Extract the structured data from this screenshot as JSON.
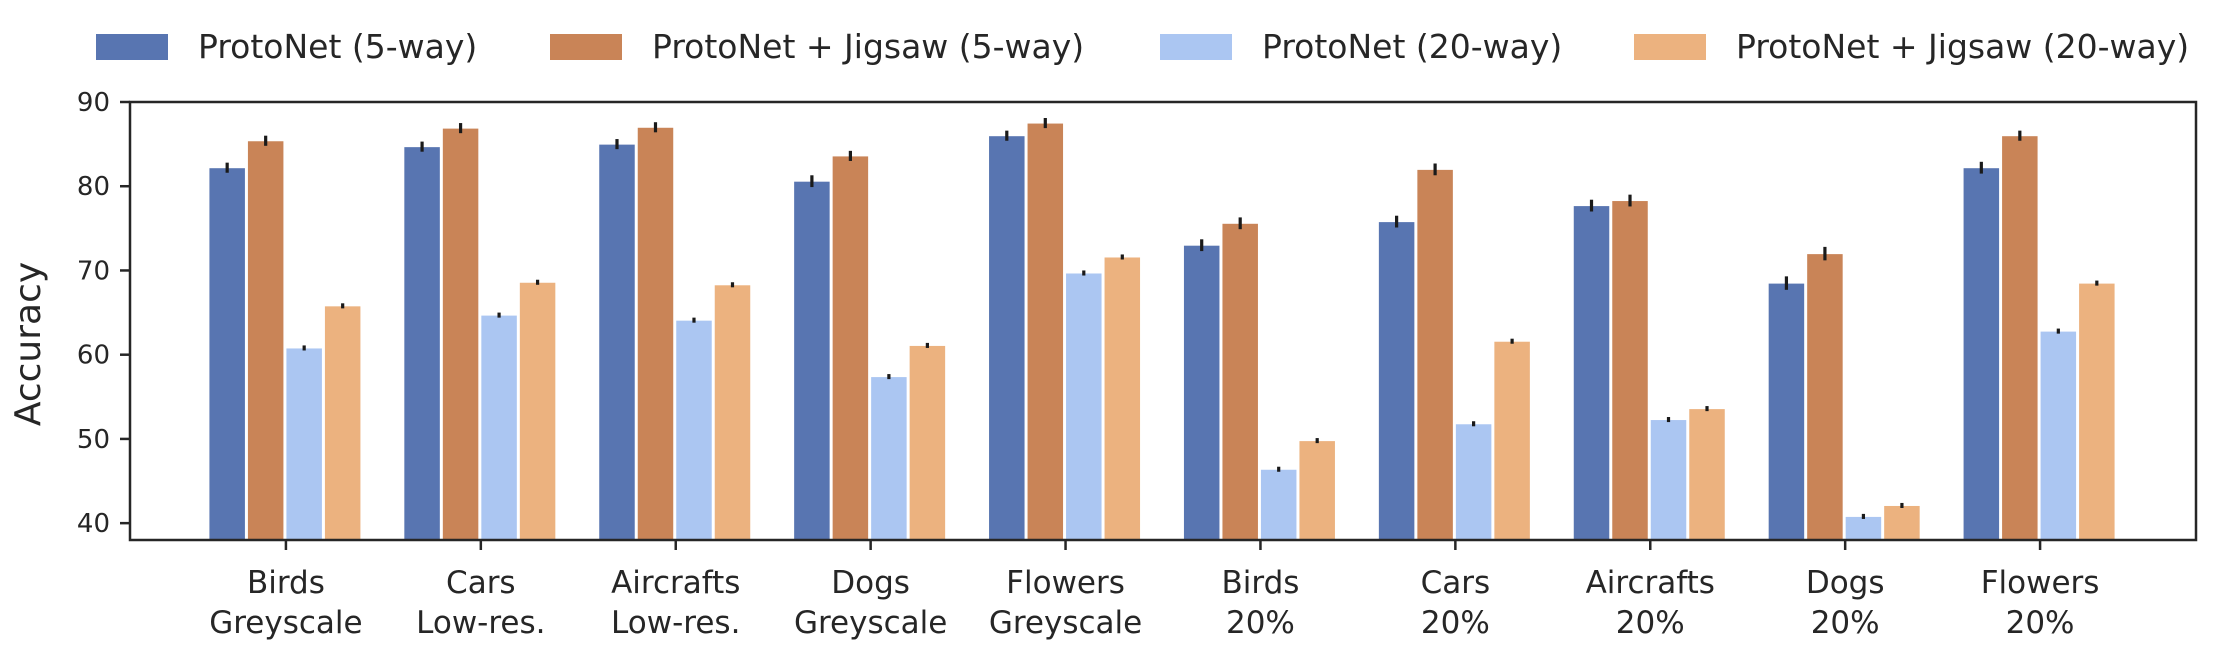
{
  "chart_data": {
    "type": "bar",
    "ylabel": "Accuracy",
    "xlabel": "",
    "ylim": [
      38,
      90
    ],
    "yticks": [
      40,
      50,
      60,
      70,
      80,
      90
    ],
    "grid": false,
    "legend_placement": "top",
    "categories": [
      [
        "Birds",
        "Greyscale"
      ],
      [
        "Cars",
        "Low-res."
      ],
      [
        "Aircrafts",
        "Low-res."
      ],
      [
        "Dogs",
        "Greyscale"
      ],
      [
        "Flowers",
        "Greyscale"
      ],
      [
        "Birds",
        "20%"
      ],
      [
        "Cars",
        "20%"
      ],
      [
        "Aircrafts",
        "20%"
      ],
      [
        "Dogs",
        "20%"
      ],
      [
        "Flowers",
        "20%"
      ]
    ],
    "series": [
      {
        "name": "ProtoNet (5-way)",
        "color": "#5875b1",
        "values": [
          82.2,
          84.7,
          85.0,
          80.6,
          86.0,
          73.0,
          75.8,
          77.7,
          68.5,
          82.2
        ],
        "errors": [
          0.6,
          0.6,
          0.6,
          0.7,
          0.6,
          0.7,
          0.7,
          0.7,
          0.8,
          0.7
        ]
      },
      {
        "name": "ProtoNet + Jigsaw (5-way)",
        "color": "#c98457",
        "values": [
          85.4,
          86.9,
          87.0,
          83.6,
          87.5,
          75.6,
          82.0,
          78.3,
          72.0,
          86.0
        ],
        "errors": [
          0.6,
          0.6,
          0.6,
          0.6,
          0.6,
          0.7,
          0.7,
          0.7,
          0.8,
          0.6
        ]
      },
      {
        "name": "ProtoNet (20-way)",
        "color": "#abc6f2",
        "values": [
          60.8,
          64.7,
          64.1,
          57.4,
          69.7,
          46.4,
          51.8,
          52.3,
          40.8,
          62.8
        ],
        "errors": [
          0.3,
          0.3,
          0.3,
          0.3,
          0.3,
          0.3,
          0.3,
          0.3,
          0.3,
          0.3
        ]
      },
      {
        "name": "ProtoNet + Jigsaw (20-way)",
        "color": "#ecb27f",
        "values": [
          65.8,
          68.6,
          68.3,
          61.1,
          71.6,
          49.8,
          61.6,
          53.6,
          42.1,
          68.5
        ],
        "errors": [
          0.3,
          0.3,
          0.3,
          0.3,
          0.3,
          0.3,
          0.3,
          0.3,
          0.3,
          0.3
        ]
      }
    ]
  }
}
